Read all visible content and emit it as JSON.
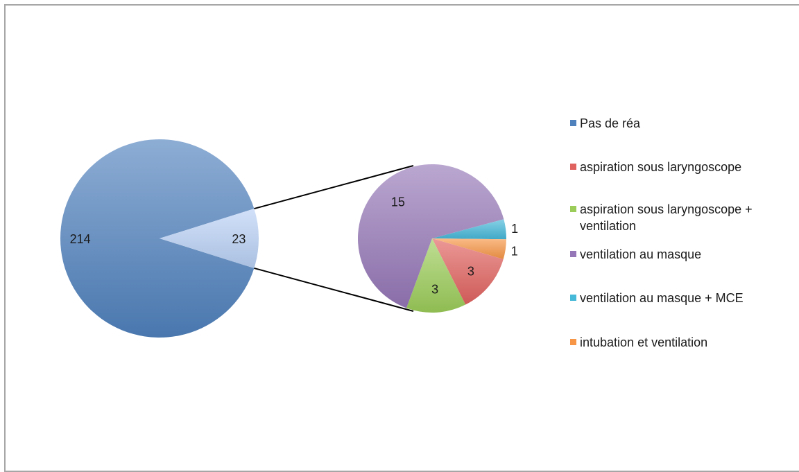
{
  "chart_data": {
    "type": "pie",
    "subtype": "pie-of-pie",
    "title": "",
    "primary": {
      "slices": [
        {
          "label": "Pas de réa",
          "value": 214,
          "color": "#4f81bd"
        },
        {
          "label": "",
          "value": 23,
          "color": "#b9d1f5",
          "breakout": true
        }
      ]
    },
    "secondary": {
      "slices": [
        {
          "label": "aspiration sous laryngoscope",
          "value": 3,
          "color": "#e0625f"
        },
        {
          "label": "aspiration sous laryngoscope + ventilation",
          "value": 3,
          "color": "#9bcc59"
        },
        {
          "label": "ventilation au masque",
          "value": 15,
          "color": "#9577b7"
        },
        {
          "label": "ventilation au masque + MCE",
          "value": 1,
          "color": "#46b8d8"
        },
        {
          "label": "intubation et ventilation",
          "value": 1,
          "color": "#f79646"
        }
      ]
    },
    "legend": {
      "position": "right",
      "entries": [
        {
          "label": "Pas de réa",
          "color": "#4f81bd"
        },
        {
          "label": "aspiration sous laryngoscope",
          "color": "#e0625f"
        },
        {
          "label": "aspiration sous laryngoscope + ventilation",
          "color": "#9bcc59"
        },
        {
          "label": "ventilation au masque",
          "color": "#9577b7"
        },
        {
          "label": "ventilation au masque + MCE",
          "color": "#46b8d8"
        },
        {
          "label": "intubation et ventilation",
          "color": "#f79646"
        }
      ]
    }
  }
}
